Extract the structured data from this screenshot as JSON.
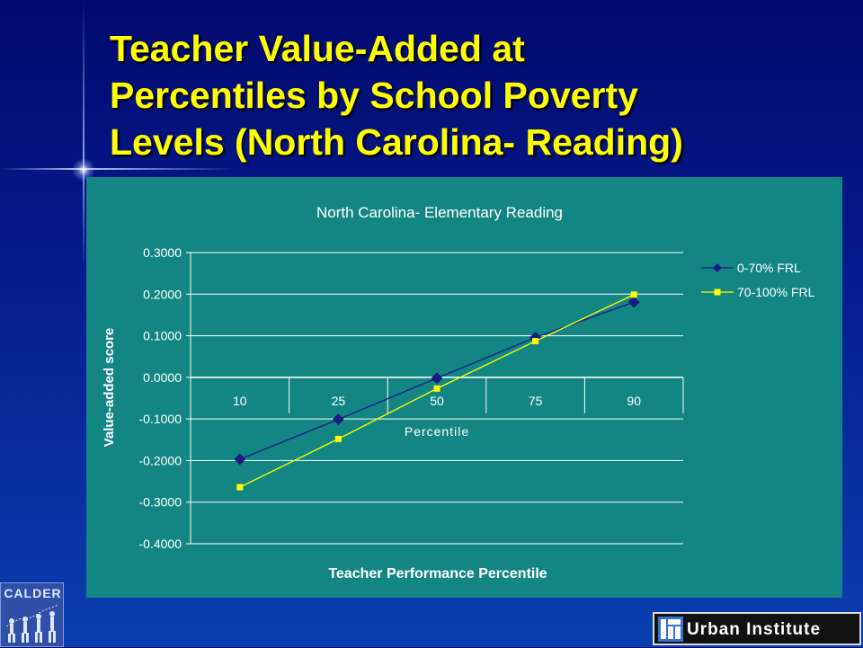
{
  "slide": {
    "title_lines": [
      "Teacher Value-Added at",
      "Percentiles by School Poverty",
      "Levels (North Carolina- Reading)"
    ],
    "colors": {
      "background": "#061a8c",
      "title": "#ffff00",
      "chart_bg": "#138683"
    }
  },
  "logos": {
    "calder": {
      "text": "CALDER",
      "icon": "evolution-figures-icon"
    },
    "urban": {
      "text": "Urban Institute",
      "icon": "urban-institute-mark-icon"
    }
  },
  "chart_data": {
    "type": "line",
    "title": "North Carolina- Elementary Reading",
    "xlabel": "Teacher Performance Percentile",
    "ylabel": "Value-added score",
    "inner_xlabel": "Percentile",
    "categories": [
      "10",
      "25",
      "50",
      "75",
      "90"
    ],
    "ylim": [
      -0.4,
      0.3
    ],
    "yticks": [
      "0.3000",
      "0.2000",
      "0.1000",
      "0.0000",
      "-0.1000",
      "-0.2000",
      "-0.3000",
      "-0.4000"
    ],
    "grid": true,
    "legend_position": "right",
    "series": [
      {
        "name": "0-70% FRL",
        "values": [
          -0.197,
          -0.101,
          -0.002,
          0.096,
          0.181
        ],
        "color": "#1a1a8c",
        "marker": "diamond"
      },
      {
        "name": "70-100% FRL",
        "values": [
          -0.264,
          -0.148,
          -0.027,
          0.087,
          0.199
        ],
        "color": "#ffff00",
        "marker": "square"
      }
    ]
  }
}
